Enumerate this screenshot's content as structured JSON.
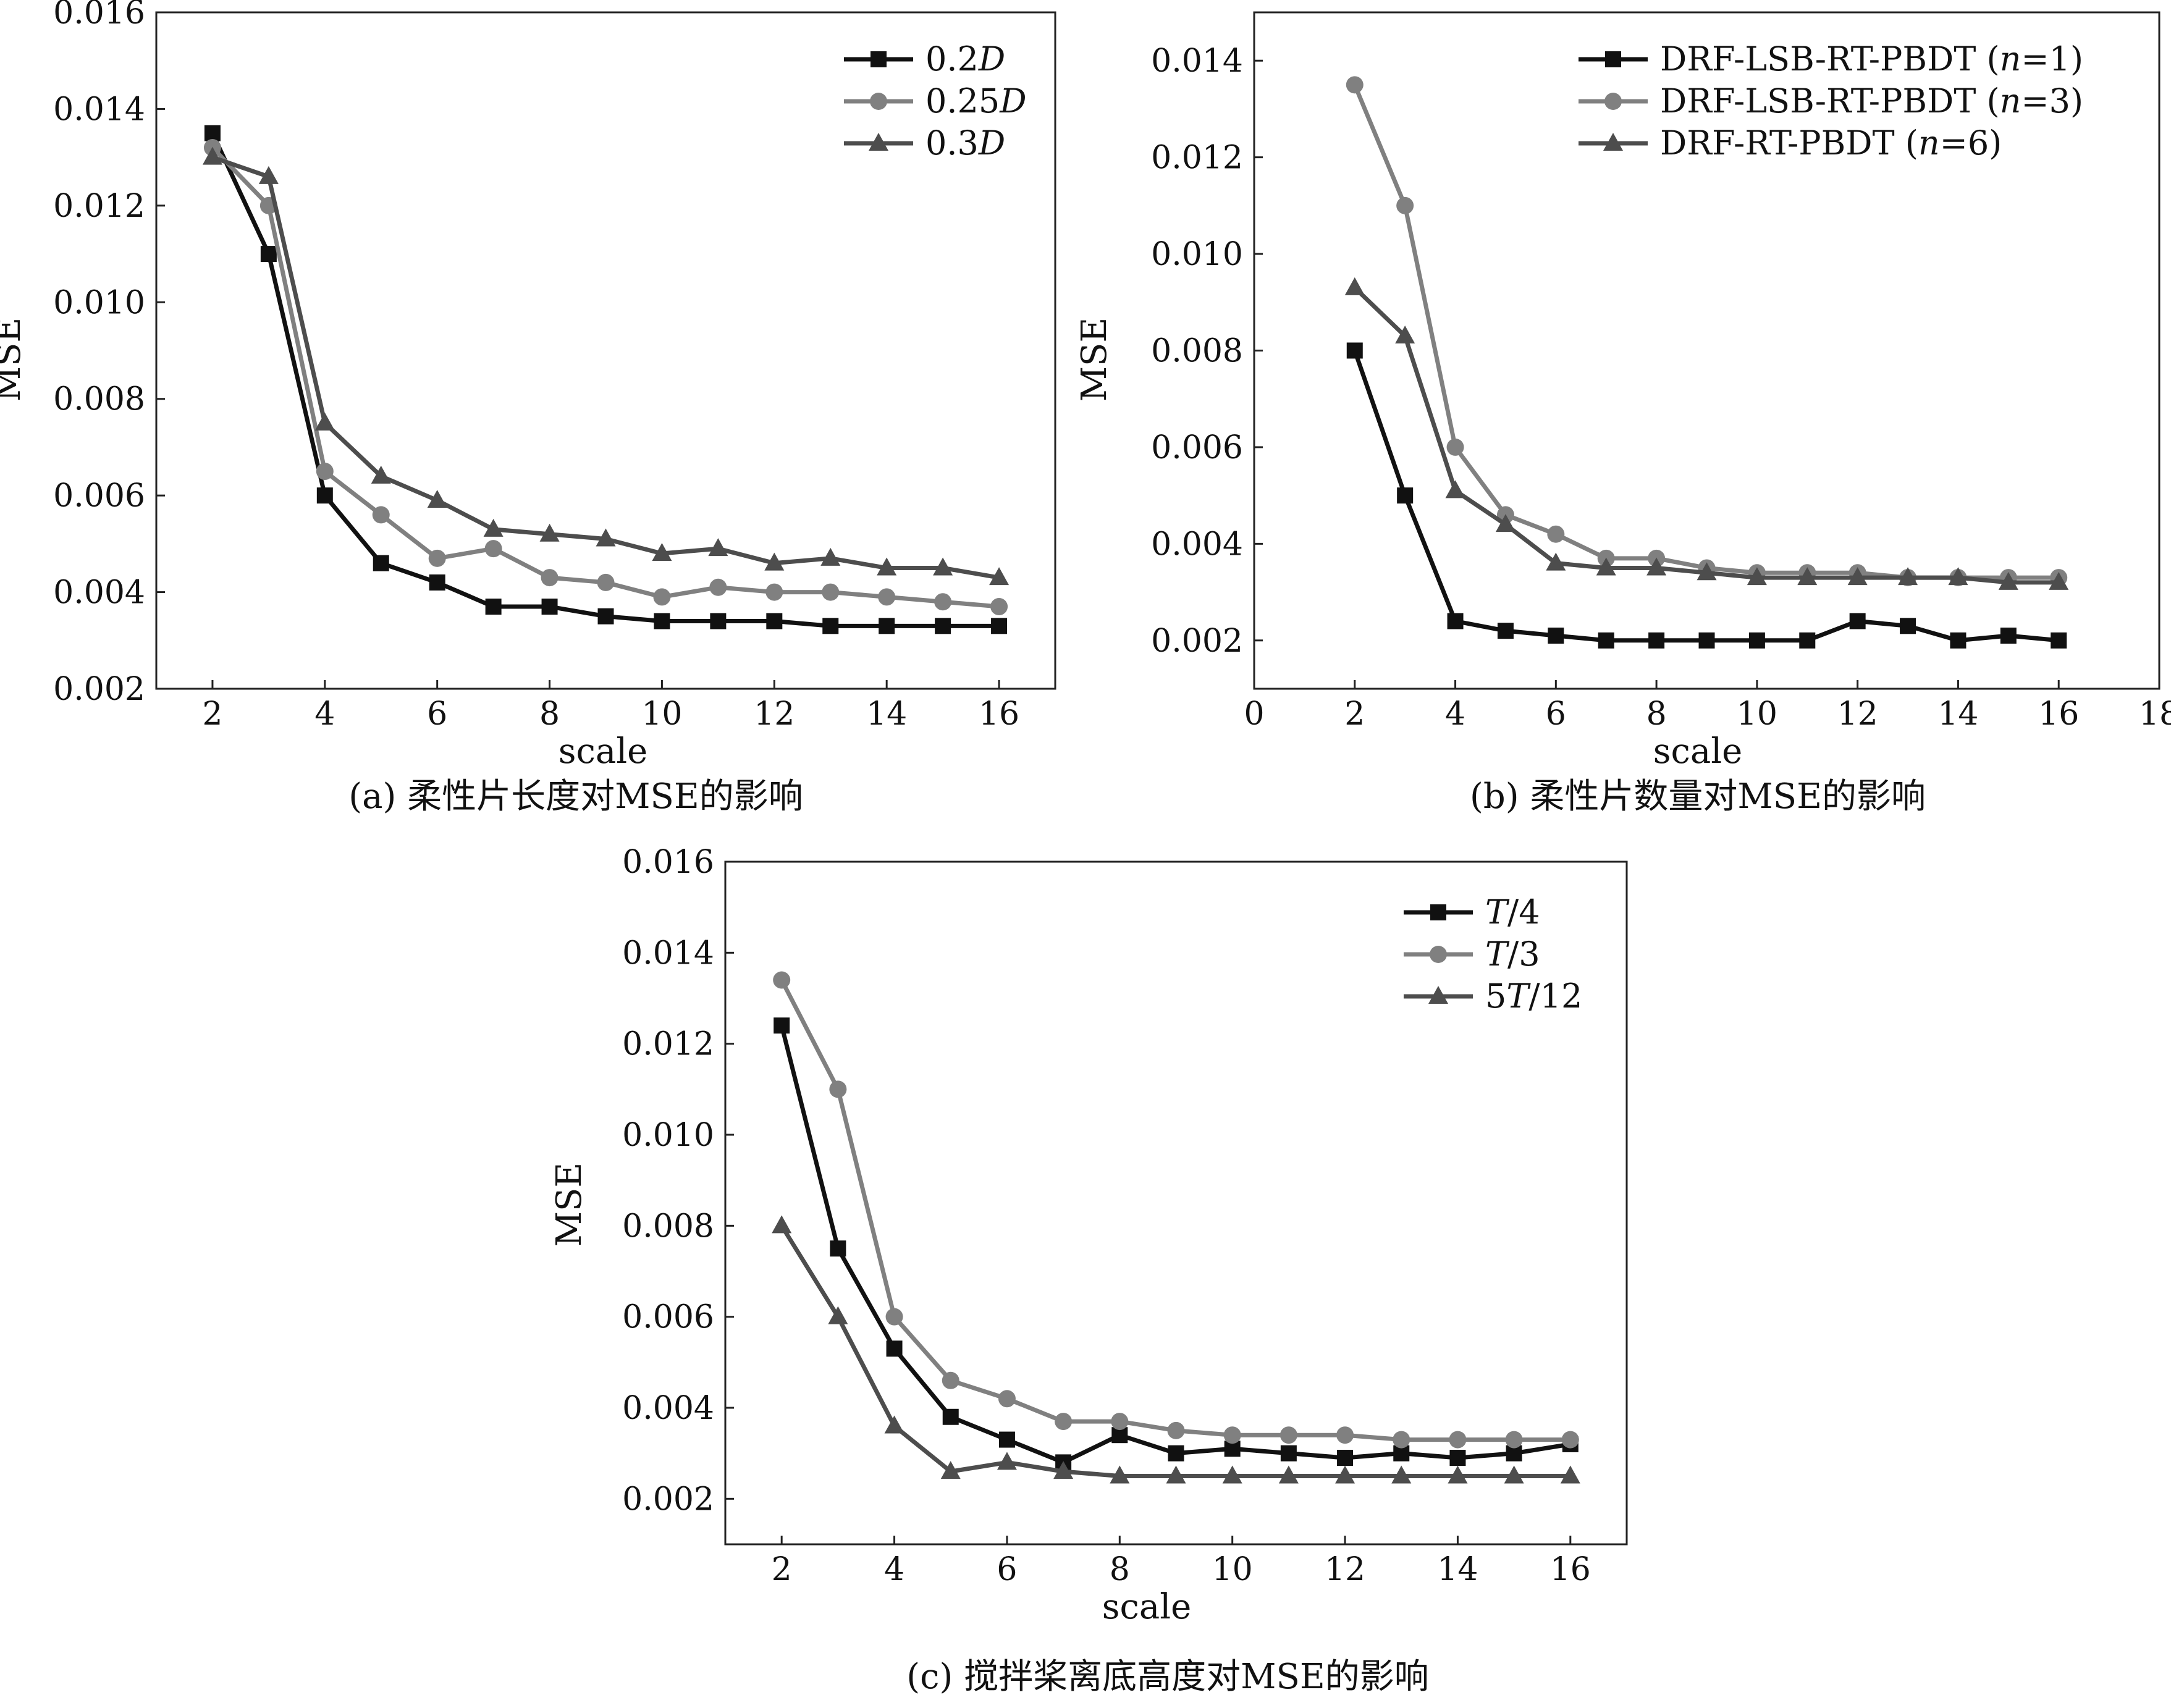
{
  "colors": {
    "black_series": "#111111",
    "light_series": "#808080",
    "dark_series": "#4d4d4d",
    "axis": "#222222"
  },
  "chart_data": [
    {
      "type": "line",
      "caption": "(a) 柔性片长度对MSE的影响",
      "xlabel": "scale",
      "ylabel": "MSE",
      "x": [
        2,
        3,
        4,
        5,
        6,
        7,
        8,
        9,
        10,
        11,
        12,
        13,
        14,
        15,
        16
      ],
      "xlim": [
        1,
        17
      ],
      "xticks": [
        "2",
        "4",
        "6",
        "8",
        "10",
        "12",
        "14",
        "16"
      ],
      "xtick_values": [
        2,
        4,
        6,
        8,
        10,
        12,
        14,
        16
      ],
      "ylim": [
        0.002,
        0.016
      ],
      "yticks": [
        "0.002",
        "0.004",
        "0.006",
        "0.008",
        "0.010",
        "0.012",
        "0.014",
        "0.016"
      ],
      "ytick_values": [
        0.002,
        0.004,
        0.006,
        0.008,
        0.01,
        0.012,
        0.014,
        0.016
      ],
      "legend_position": "top-right",
      "series": [
        {
          "name_prefix": "0.2",
          "name_italic": "D",
          "name_suffix": "",
          "marker": "square",
          "color": "#111111",
          "values": [
            0.0135,
            0.011,
            0.006,
            0.0046,
            0.0042,
            0.0037,
            0.0037,
            0.0035,
            0.0034,
            0.0034,
            0.0034,
            0.0033,
            0.0033,
            0.0033,
            0.0033
          ]
        },
        {
          "name_prefix": "0.25",
          "name_italic": "D",
          "name_suffix": "",
          "marker": "circle",
          "color": "#808080",
          "values": [
            0.0132,
            0.012,
            0.0065,
            0.0056,
            0.0047,
            0.0049,
            0.0043,
            0.0042,
            0.0039,
            0.0041,
            0.004,
            0.004,
            0.0039,
            0.0038,
            0.0037
          ]
        },
        {
          "name_prefix": "0.3",
          "name_italic": "D",
          "name_suffix": "",
          "marker": "triangle",
          "color": "#4d4d4d",
          "values": [
            0.013,
            0.0126,
            0.0075,
            0.0064,
            0.0059,
            0.0053,
            0.0052,
            0.0051,
            0.0048,
            0.0049,
            0.0046,
            0.0047,
            0.0045,
            0.0045,
            0.0043
          ]
        }
      ]
    },
    {
      "type": "line",
      "caption": "(b) 柔性片数量对MSE的影响",
      "xlabel": "scale",
      "ylabel": "MSE",
      "x": [
        2,
        3,
        4,
        5,
        6,
        7,
        8,
        9,
        10,
        11,
        12,
        13,
        14,
        15,
        16
      ],
      "xlim": [
        0,
        18
      ],
      "xticks": [
        "0",
        "2",
        "4",
        "6",
        "8",
        "10",
        "12",
        "14",
        "16",
        "18"
      ],
      "xtick_values": [
        0,
        2,
        4,
        6,
        8,
        10,
        12,
        14,
        16,
        18
      ],
      "ylim": [
        0.001,
        0.015
      ],
      "yticks": [
        "0.002",
        "0.004",
        "0.006",
        "0.008",
        "0.010",
        "0.012",
        "0.014"
      ],
      "ytick_values": [
        0.002,
        0.004,
        0.006,
        0.008,
        0.01,
        0.012,
        0.014
      ],
      "legend_position": "top-right",
      "series": [
        {
          "name_prefix": "DRF-LSB-RT-PBDT (",
          "name_italic": "n",
          "name_suffix": "=1)",
          "marker": "square",
          "color": "#111111",
          "values": [
            0.008,
            0.005,
            0.0024,
            0.0022,
            0.0021,
            0.002,
            0.002,
            0.002,
            0.002,
            0.002,
            0.0024,
            0.0023,
            0.002,
            0.0021,
            0.002
          ]
        },
        {
          "name_prefix": "DRF-LSB-RT-PBDT (",
          "name_italic": "n",
          "name_suffix": "=3)",
          "marker": "circle",
          "color": "#808080",
          "values": [
            0.0135,
            0.011,
            0.006,
            0.0046,
            0.0042,
            0.0037,
            0.0037,
            0.0035,
            0.0034,
            0.0034,
            0.0034,
            0.0033,
            0.0033,
            0.0033,
            0.0033
          ]
        },
        {
          "name_prefix": "DRF-RT-PBDT (",
          "name_italic": "n",
          "name_suffix": "=6)",
          "marker": "triangle",
          "color": "#4d4d4d",
          "values": [
            0.0093,
            0.0083,
            0.0051,
            0.0044,
            0.0036,
            0.0035,
            0.0035,
            0.0034,
            0.0033,
            0.0033,
            0.0033,
            0.0033,
            0.0033,
            0.0032,
            0.0032
          ]
        }
      ]
    },
    {
      "type": "line",
      "caption": "(c) 搅拌桨离底高度对MSE的影响",
      "xlabel": "scale",
      "ylabel": "MSE",
      "x": [
        2,
        3,
        4,
        5,
        6,
        7,
        8,
        9,
        10,
        11,
        12,
        13,
        14,
        15,
        16
      ],
      "xlim": [
        1,
        17
      ],
      "xticks": [
        "2",
        "4",
        "6",
        "8",
        "10",
        "12",
        "14",
        "16"
      ],
      "xtick_values": [
        2,
        4,
        6,
        8,
        10,
        12,
        14,
        16
      ],
      "ylim": [
        0.001,
        0.016
      ],
      "yticks": [
        "0.002",
        "0.004",
        "0.006",
        "0.008",
        "0.010",
        "0.012",
        "0.014",
        "0.016"
      ],
      "ytick_values": [
        0.002,
        0.004,
        0.006,
        0.008,
        0.01,
        0.012,
        0.014,
        0.016
      ],
      "legend_position": "top-right",
      "series": [
        {
          "name_prefix": "",
          "name_italic": "T",
          "name_suffix": "/4",
          "marker": "square",
          "color": "#111111",
          "values": [
            0.0124,
            0.0075,
            0.0053,
            0.0038,
            0.0033,
            0.0028,
            0.0034,
            0.003,
            0.0031,
            0.003,
            0.0029,
            0.003,
            0.0029,
            0.003,
            0.0032
          ]
        },
        {
          "name_prefix": "",
          "name_italic": "T",
          "name_suffix": "/3",
          "marker": "circle",
          "color": "#808080",
          "values": [
            0.0134,
            0.011,
            0.006,
            0.0046,
            0.0042,
            0.0037,
            0.0037,
            0.0035,
            0.0034,
            0.0034,
            0.0034,
            0.0033,
            0.0033,
            0.0033,
            0.0033
          ]
        },
        {
          "name_prefix": "5",
          "name_italic": "T",
          "name_suffix": "/12",
          "marker": "triangle",
          "color": "#4d4d4d",
          "values": [
            0.008,
            0.006,
            0.0036,
            0.0026,
            0.0028,
            0.0026,
            0.0025,
            0.0025,
            0.0025,
            0.0025,
            0.0025,
            0.0025,
            0.0025,
            0.0025,
            0.0025
          ]
        }
      ]
    }
  ]
}
